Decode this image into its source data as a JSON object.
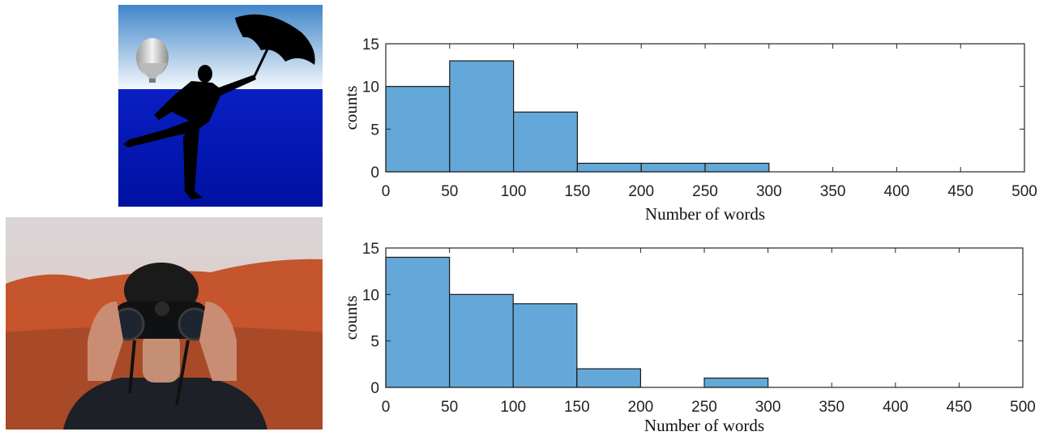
{
  "colors": {
    "bar_fill": "#63a8d8",
    "bar_stroke": "#1a1a1a",
    "axis": "#262626"
  },
  "images": [
    {
      "name": "umbrella-man-illustration",
      "description_icon": "silhouette-umbrella-icon"
    },
    {
      "name": "binoculars-photo",
      "description_icon": "binoculars-icon"
    }
  ],
  "chart_data": [
    {
      "type": "bar",
      "variant": "histogram",
      "bin_edges": [
        0,
        50,
        100,
        150,
        200,
        250,
        300
      ],
      "values": [
        10,
        13,
        7,
        1,
        1,
        1
      ],
      "xlabel": "Number of words",
      "ylabel": "counts",
      "xlim": [
        0,
        500
      ],
      "ylim": [
        0,
        15
      ],
      "xticks": [
        0,
        50,
        100,
        150,
        200,
        250,
        300,
        350,
        400,
        450,
        500
      ],
      "yticks": [
        0,
        5,
        10,
        15
      ],
      "grid": false
    },
    {
      "type": "bar",
      "variant": "histogram",
      "bin_edges": [
        0,
        50,
        100,
        150,
        200,
        250,
        300
      ],
      "values": [
        14,
        10,
        9,
        2,
        0,
        1
      ],
      "xlabel": "Number of words",
      "ylabel": "counts",
      "xlim": [
        0,
        500
      ],
      "ylim": [
        0,
        15
      ],
      "xticks": [
        0,
        50,
        100,
        150,
        200,
        250,
        300,
        350,
        400,
        450,
        500
      ],
      "yticks": [
        0,
        5,
        10,
        15
      ],
      "grid": false
    }
  ]
}
